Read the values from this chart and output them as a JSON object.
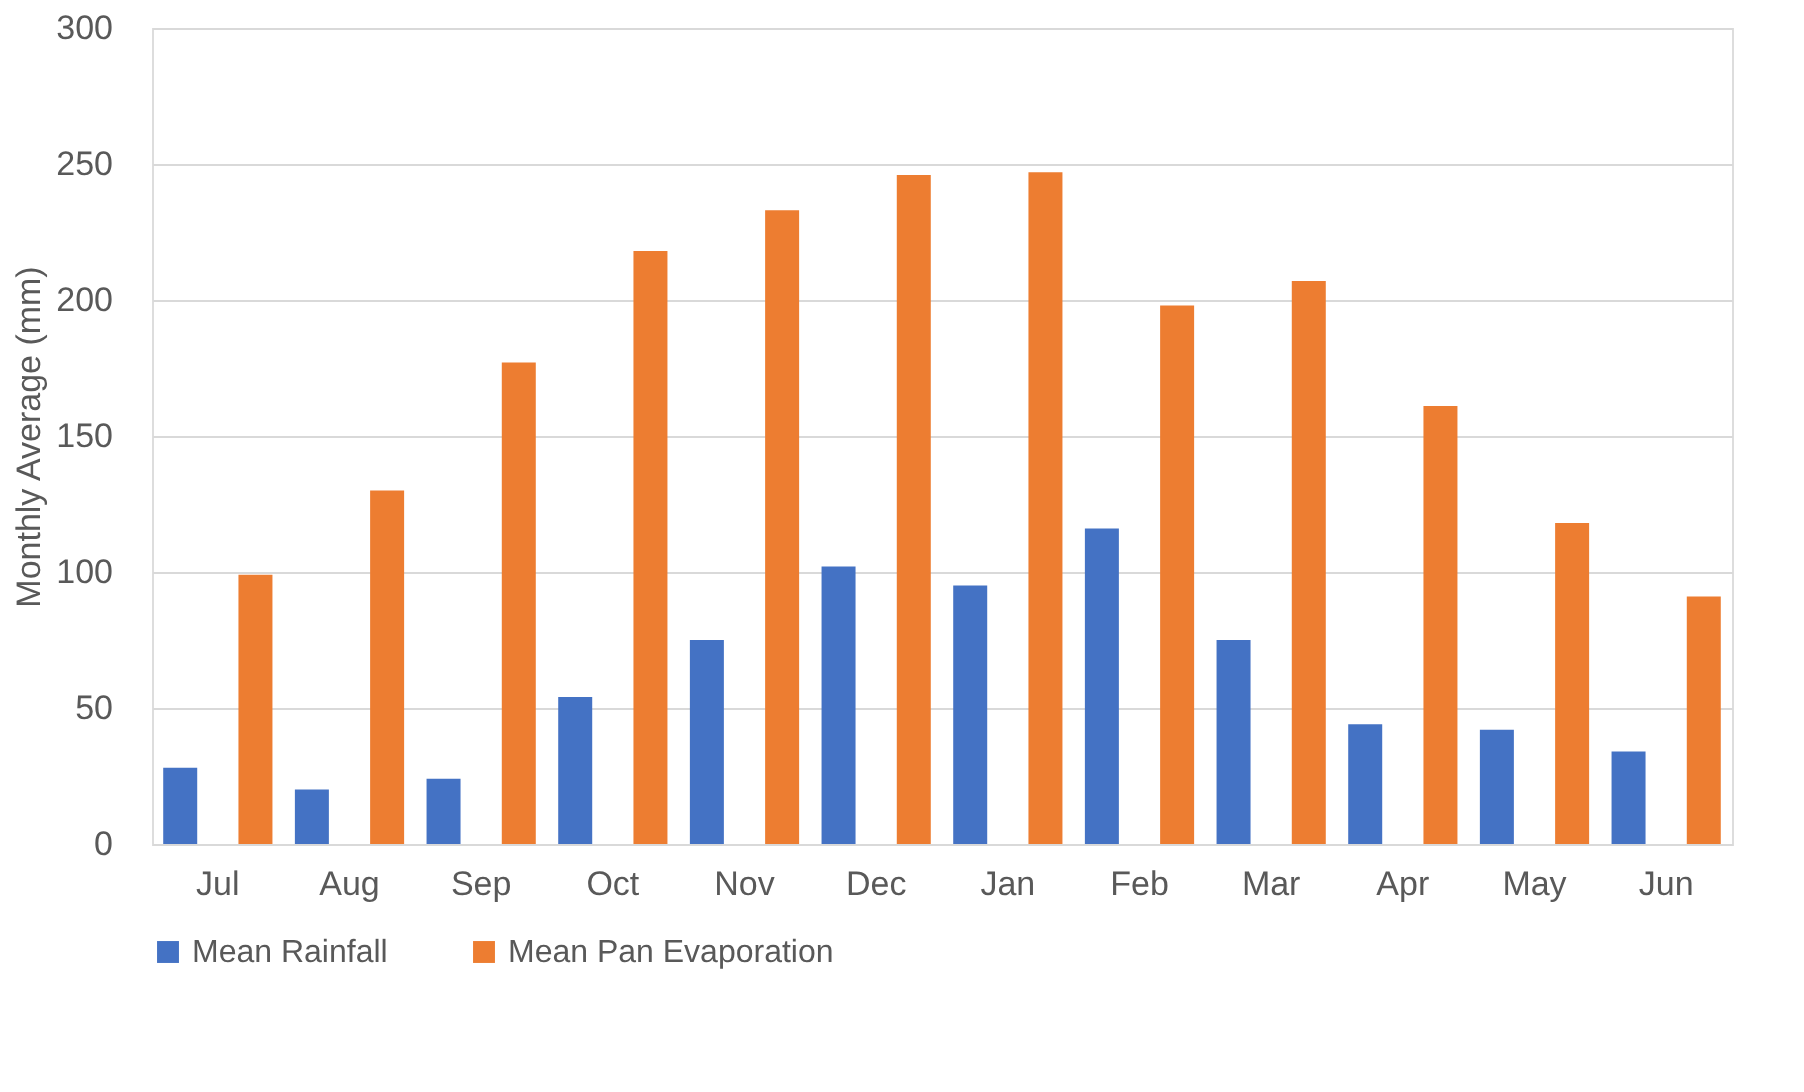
{
  "chart_data": {
    "type": "bar",
    "ylabel": "Monthly Average (mm)",
    "categories": [
      "Jul",
      "Aug",
      "Sep",
      "Oct",
      "Nov",
      "Dec",
      "Jan",
      "Feb",
      "Mar",
      "Apr",
      "May",
      "Jun"
    ],
    "series": [
      {
        "name": "Mean Rainfall",
        "color": "#4472c4",
        "values": [
          28,
          20,
          24,
          54,
          75,
          102,
          95,
          116,
          75,
          44,
          42,
          34
        ]
      },
      {
        "name": "Mean Pan Evaporation",
        "color": "#ed7d31",
        "values": [
          99,
          130,
          177,
          218,
          233,
          246,
          247,
          198,
          207,
          161,
          118,
          91
        ]
      }
    ],
    "ylim": [
      0,
      300
    ],
    "yticks": [
      0,
      50,
      100,
      150,
      200,
      250,
      300
    ],
    "grid": "y",
    "legend": "bottom"
  }
}
